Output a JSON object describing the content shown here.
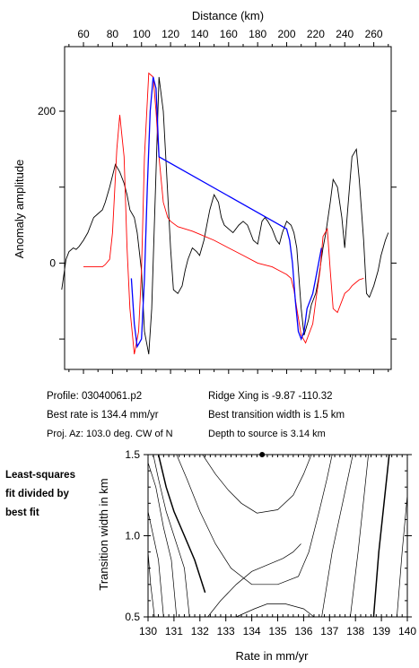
{
  "colors": {
    "observed": "#000000",
    "model": "#ff0000",
    "fit": "#0000ff",
    "contour": "#000000"
  },
  "info": {
    "profile": "Profile: 03040061.p2",
    "ridge": "Ridge Xing is -9.87 -110.32",
    "rate": "Best rate is 134.4 mm/yr",
    "width": "Best transition width is 1.5 km",
    "az": "Proj. Az: 103.0 deg. CW of N",
    "depth": "Depth to source is   3.14 km"
  },
  "side_note": [
    "Least-squares",
    "fit divided by",
    "best fit"
  ],
  "chart_data": [
    {
      "type": "line",
      "xlabel": "Distance (km)",
      "ylabel": "Anomaly amplitude",
      "xticks": [
        60,
        80,
        100,
        120,
        140,
        160,
        180,
        200,
        220,
        240,
        260
      ],
      "yticks": [
        0,
        200
      ],
      "xlim": [
        47,
        272
      ],
      "ylim": [
        -140,
        285
      ],
      "series": [
        {
          "key": "observed",
          "x": [
            45,
            48,
            50,
            53,
            55,
            57,
            60,
            63,
            65,
            67,
            70,
            73,
            75,
            78,
            80,
            82,
            85,
            88,
            90,
            92,
            95,
            97,
            100,
            102,
            105,
            107,
            110,
            112,
            115,
            117,
            120,
            122,
            125,
            128,
            130,
            132,
            135,
            138,
            140,
            143,
            145,
            147,
            150,
            153,
            155,
            157,
            160,
            163,
            165,
            167,
            170,
            173,
            175,
            177,
            180,
            183,
            185,
            187,
            190,
            193,
            195,
            197,
            200,
            203,
            205,
            207,
            210,
            212,
            215,
            217,
            220,
            222,
            225,
            227,
            230,
            232,
            235,
            238,
            240,
            242,
            245,
            248,
            250,
            253,
            255,
            257,
            260,
            263,
            265,
            268,
            270
          ],
          "y": [
            -35,
            5,
            15,
            20,
            18,
            22,
            30,
            40,
            50,
            60,
            65,
            70,
            80,
            100,
            115,
            130,
            120,
            105,
            90,
            70,
            60,
            40,
            -10,
            -90,
            -120,
            -60,
            120,
            245,
            200,
            130,
            20,
            -35,
            -40,
            -30,
            -10,
            5,
            20,
            15,
            10,
            30,
            50,
            70,
            90,
            80,
            60,
            50,
            45,
            40,
            45,
            50,
            55,
            50,
            40,
            30,
            25,
            55,
            60,
            55,
            45,
            30,
            25,
            40,
            55,
            50,
            40,
            20,
            -60,
            -95,
            -75,
            -55,
            -40,
            -20,
            20,
            40,
            80,
            110,
            100,
            60,
            20,
            70,
            140,
            150,
            110,
            30,
            -40,
            -45,
            -30,
            -10,
            10,
            30,
            40
          ]
        },
        {
          "key": "model",
          "x": [
            60,
            65,
            70,
            73,
            75,
            78,
            80,
            83,
            85,
            88,
            90,
            92,
            95,
            98,
            100,
            102,
            105,
            108,
            110,
            112,
            115,
            118,
            120,
            125,
            130,
            135,
            140,
            150,
            160,
            170,
            180,
            190,
            195,
            200,
            203,
            205,
            207,
            210,
            213,
            215,
            218,
            220,
            223,
            225,
            228,
            230,
            232,
            235,
            238,
            240,
            243,
            245,
            248,
            250,
            253
          ],
          "y": [
            -5,
            -5,
            -5,
            -5,
            -2,
            5,
            40,
            150,
            195,
            140,
            20,
            -60,
            -120,
            -90,
            -10,
            140,
            250,
            245,
            200,
            140,
            80,
            60,
            55,
            48,
            45,
            42,
            38,
            30,
            20,
            10,
            0,
            -5,
            -10,
            -15,
            -20,
            -35,
            -60,
            -95,
            -105,
            -95,
            -80,
            -50,
            -10,
            35,
            45,
            -10,
            -60,
            -65,
            -50,
            -40,
            -35,
            -30,
            -25,
            -22,
            -20
          ]
        },
        {
          "key": "fit",
          "x": [
            93,
            95,
            97,
            100,
            102,
            104,
            106,
            108,
            110,
            112,
            200,
            202,
            204,
            206,
            208,
            210,
            212,
            214,
            216,
            218,
            220,
            222,
            224
          ],
          "y": [
            -20,
            -80,
            -110,
            -100,
            -20,
            100,
            200,
            245,
            230,
            140,
            45,
            30,
            0,
            -50,
            -90,
            -100,
            -90,
            -60,
            -50,
            -40,
            -20,
            0,
            20
          ]
        }
      ]
    },
    {
      "type": "contour",
      "xlabel": "Rate in mm/yr",
      "ylabel": "Transition width in km",
      "xticks": [
        "130",
        "131",
        "132",
        "133",
        "134",
        "135",
        "136",
        "137",
        "138",
        "139",
        "140"
      ],
      "yticks": [
        "0.5",
        "1.0",
        "1.5"
      ],
      "xlim": [
        130,
        140
      ],
      "ylim": [
        0.5,
        1.5
      ],
      "best_point": {
        "rate": 134.4,
        "width": 1.5
      },
      "contours": [
        {
          "bold": true,
          "x": [
            130.4,
            130.7,
            131.0,
            131.4,
            131.8,
            132.2
          ],
          "y": [
            1.5,
            1.3,
            1.15,
            1.0,
            0.85,
            0.65
          ]
        },
        {
          "bold": false,
          "x": [
            130.2,
            130.4,
            130.7,
            131.0,
            131.4,
            131.6
          ],
          "y": [
            1.5,
            1.35,
            1.15,
            1.0,
            0.8,
            0.5
          ]
        },
        {
          "bold": false,
          "x": [
            130.0,
            130.3,
            130.6,
            130.9,
            131.1
          ],
          "y": [
            1.45,
            1.3,
            1.05,
            0.85,
            0.5
          ]
        },
        {
          "bold": false,
          "x": [
            130.0,
            130.2,
            130.4,
            130.6
          ],
          "y": [
            1.15,
            1.0,
            0.85,
            0.5
          ]
        },
        {
          "bold": false,
          "x": [
            130.0,
            130.1,
            130.25
          ],
          "y": [
            0.9,
            0.7,
            0.5
          ]
        },
        {
          "bold": false,
          "x": [
            131.1,
            131.5,
            132.0,
            132.6,
            133.2,
            134.0,
            135.0,
            135.8,
            136.2,
            136.6,
            136.9,
            137.1
          ],
          "y": [
            1.5,
            1.35,
            1.15,
            0.95,
            0.8,
            0.7,
            0.7,
            0.75,
            0.9,
            1.15,
            1.35,
            1.5
          ]
        },
        {
          "bold": false,
          "x": [
            132.1,
            132.6,
            133.1,
            133.6,
            134.2,
            135.0,
            135.6,
            136.0,
            136.3
          ],
          "y": [
            1.5,
            1.38,
            1.28,
            1.2,
            1.14,
            1.16,
            1.25,
            1.38,
            1.5
          ]
        },
        {
          "bold": false,
          "x": [
            132.3,
            132.8,
            133.4,
            134.0,
            134.6,
            135.2,
            135.6,
            135.9
          ],
          "y": [
            0.5,
            0.6,
            0.7,
            0.78,
            0.82,
            0.86,
            0.9,
            0.95
          ]
        },
        {
          "bold": false,
          "x": [
            133.4,
            134.1,
            134.6,
            135.3,
            136.0,
            136.4
          ],
          "y": [
            0.5,
            0.55,
            0.58,
            0.58,
            0.55,
            0.5
          ]
        },
        {
          "bold": false,
          "x": [
            137.9,
            137.5,
            137.1,
            136.9,
            136.7
          ],
          "y": [
            1.5,
            1.2,
            0.9,
            0.7,
            0.5
          ]
        },
        {
          "bold": false,
          "x": [
            138.5,
            138.3,
            138.1,
            137.8
          ],
          "y": [
            1.5,
            1.2,
            0.9,
            0.5
          ]
        },
        {
          "bold": true,
          "x": [
            139.3,
            139.1,
            138.9,
            138.7
          ],
          "y": [
            1.5,
            1.2,
            0.9,
            0.5
          ]
        },
        {
          "bold": false,
          "x": [
            140.0,
            139.8,
            139.6
          ],
          "y": [
            1.25,
            0.9,
            0.5
          ]
        }
      ]
    }
  ]
}
